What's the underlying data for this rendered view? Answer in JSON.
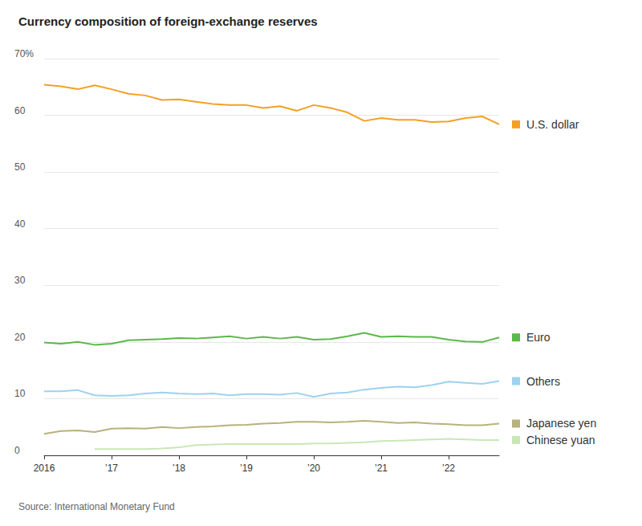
{
  "chart_data": {
    "type": "line",
    "title": "Currency composition of foreign-exchange reserves",
    "source": "Source: International Monetary Fund",
    "categories": [
      "2016",
      null,
      null,
      null,
      "’17",
      null,
      null,
      null,
      "’18",
      null,
      null,
      null,
      "’19",
      null,
      null,
      null,
      "’20",
      null,
      null,
      null,
      "’21",
      null,
      null,
      null,
      "’22",
      null,
      null,
      null
    ],
    "series": [
      {
        "name": "U.S. dollar",
        "color": "#f4a024",
        "values": [
          65.4,
          65.1,
          64.6,
          65.3,
          64.6,
          63.8,
          63.5,
          62.7,
          62.8,
          62.4,
          62.0,
          61.8,
          61.8,
          61.3,
          61.6,
          60.8,
          61.8,
          61.3,
          60.5,
          59.0,
          59.5,
          59.2,
          59.2,
          58.8,
          58.9,
          59.5,
          59.8,
          58.4
        ]
      },
      {
        "name": "Euro",
        "color": "#5cb84a",
        "values": [
          19.9,
          19.7,
          20.0,
          19.5,
          19.7,
          20.3,
          20.4,
          20.5,
          20.7,
          20.6,
          20.8,
          21.0,
          20.6,
          20.9,
          20.6,
          20.9,
          20.4,
          20.5,
          21.0,
          21.6,
          20.9,
          21.0,
          20.9,
          20.9,
          20.4,
          20.1,
          20.0,
          20.8
        ]
      },
      {
        "name": "Others",
        "color": "#9dd2ee",
        "values": [
          11.3,
          11.3,
          11.5,
          10.6,
          10.5,
          10.6,
          10.9,
          11.1,
          10.9,
          10.8,
          10.9,
          10.6,
          10.8,
          10.8,
          10.7,
          11.0,
          10.3,
          10.9,
          11.1,
          11.6,
          11.9,
          12.1,
          12.0,
          12.4,
          13.0,
          12.8,
          12.6,
          13.1
        ]
      },
      {
        "name": "Japanese yen",
        "color": "#b8b27c",
        "values": [
          3.8,
          4.3,
          4.4,
          4.1,
          4.7,
          4.8,
          4.7,
          5.0,
          4.8,
          5.0,
          5.1,
          5.3,
          5.4,
          5.6,
          5.7,
          5.9,
          5.9,
          5.8,
          5.9,
          6.1,
          5.9,
          5.7,
          5.8,
          5.6,
          5.5,
          5.3,
          5.3,
          5.6
        ]
      },
      {
        "name": "Chinese yuan",
        "color": "#c9e7b6",
        "values": [
          null,
          null,
          null,
          1.1,
          1.1,
          1.1,
          1.1,
          1.2,
          1.4,
          1.8,
          1.9,
          2.0,
          2.0,
          2.0,
          2.0,
          2.0,
          2.1,
          2.1,
          2.2,
          2.3,
          2.5,
          2.6,
          2.7,
          2.8,
          2.9,
          2.8,
          2.7,
          2.7
        ]
      }
    ],
    "ylim": [
      0,
      70
    ],
    "yticks": [
      0,
      10,
      20,
      30,
      40,
      50,
      60,
      {
        "value": 70,
        "label": "70%"
      }
    ],
    "grid": true
  }
}
